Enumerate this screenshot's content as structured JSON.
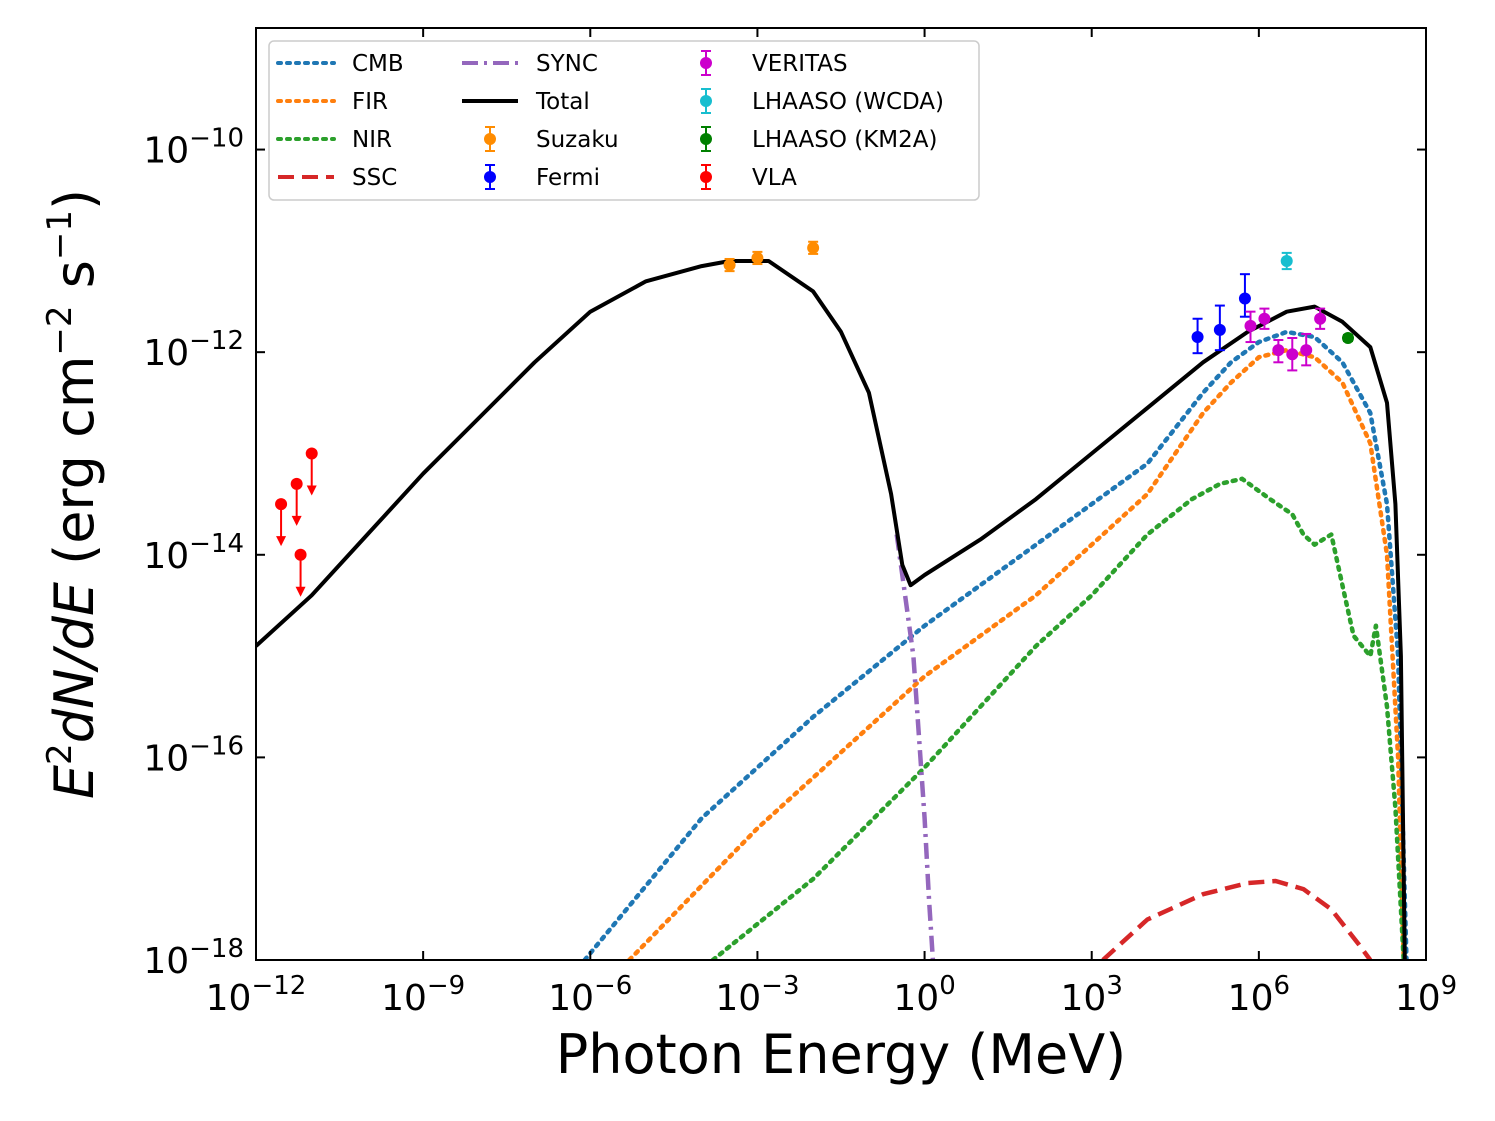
{
  "chart_data": {
    "type": "line",
    "title": "",
    "xlabel": "Photon Energy (MeV)",
    "ylabel_parts": {
      "E": "E",
      "sup2": "2",
      "dNdE": "dN/dE",
      "unit_open": "(erg cm",
      "sup_m2": "−2",
      "unit_s": " s",
      "sup_m1": "−1",
      "unit_close": ")"
    },
    "xscale": "log",
    "yscale": "log",
    "xlim_exp": [
      -12,
      9
    ],
    "ylim_exp": [
      -18,
      -8.8
    ],
    "x_ticks": [
      {
        "base": "10",
        "exp": "−12",
        "value": -12
      },
      {
        "base": "10",
        "exp": "−9",
        "value": -9
      },
      {
        "base": "10",
        "exp": "−6",
        "value": -6
      },
      {
        "base": "10",
        "exp": "−3",
        "value": -3
      },
      {
        "base": "10",
        "exp": "0",
        "value": 0
      },
      {
        "base": "10",
        "exp": "3",
        "value": 3
      },
      {
        "base": "10",
        "exp": "6",
        "value": 6
      },
      {
        "base": "10",
        "exp": "9",
        "value": 9
      }
    ],
    "y_ticks": [
      {
        "base": "10",
        "exp": "−18",
        "value": -18
      },
      {
        "base": "10",
        "exp": "−16",
        "value": -16
      },
      {
        "base": "10",
        "exp": "−14",
        "value": -14
      },
      {
        "base": "10",
        "exp": "−12",
        "value": -12
      },
      {
        "base": "10",
        "exp": "−10",
        "value": -10
      }
    ],
    "series": [
      {
        "name": "CMB",
        "color": "#1f77b4",
        "style": "dotted",
        "points": [
          [
            -6.1,
            -18
          ],
          [
            -4,
            -16.6
          ],
          [
            -2,
            -15.6
          ],
          [
            0,
            -14.7
          ],
          [
            1,
            -14.3
          ],
          [
            2,
            -13.9
          ],
          [
            3,
            -13.5
          ],
          [
            4,
            -13.1
          ],
          [
            5,
            -12.4
          ],
          [
            5.5,
            -12.1
          ],
          [
            6,
            -11.9
          ],
          [
            6.5,
            -11.8
          ],
          [
            7,
            -11.85
          ],
          [
            7.5,
            -12.1
          ],
          [
            8,
            -12.6
          ],
          [
            8.3,
            -13.5
          ],
          [
            8.5,
            -15
          ],
          [
            8.65,
            -18
          ]
        ]
      },
      {
        "name": "FIR",
        "color": "#ff7f0e",
        "style": "dotted",
        "points": [
          [
            -5.3,
            -18
          ],
          [
            -3,
            -16.7
          ],
          [
            -1,
            -15.7
          ],
          [
            0,
            -15.2
          ],
          [
            1,
            -14.8
          ],
          [
            2,
            -14.4
          ],
          [
            3,
            -13.9
          ],
          [
            4,
            -13.4
          ],
          [
            5,
            -12.6
          ],
          [
            5.5,
            -12.3
          ],
          [
            6,
            -12.05
          ],
          [
            6.5,
            -11.98
          ],
          [
            7,
            -12.05
          ],
          [
            7.5,
            -12.3
          ],
          [
            8,
            -12.9
          ],
          [
            8.3,
            -14
          ],
          [
            8.5,
            -16
          ],
          [
            8.6,
            -18
          ]
        ]
      },
      {
        "name": "NIR",
        "color": "#2ca02c",
        "style": "dotted",
        "points": [
          [
            -3.8,
            -18
          ],
          [
            -2,
            -17.2
          ],
          [
            0,
            -16.1
          ],
          [
            2,
            -14.9
          ],
          [
            3,
            -14.4
          ],
          [
            4,
            -13.8
          ],
          [
            4.8,
            -13.45
          ],
          [
            5.3,
            -13.3
          ],
          [
            5.7,
            -13.25
          ],
          [
            6.2,
            -13.45
          ],
          [
            6.6,
            -13.6
          ],
          [
            6.8,
            -13.8
          ],
          [
            7.0,
            -13.9
          ],
          [
            7.3,
            -13.8
          ],
          [
            7.5,
            -14.3
          ],
          [
            7.7,
            -14.8
          ],
          [
            8.0,
            -15.0
          ],
          [
            8.1,
            -14.7
          ],
          [
            8.3,
            -15.5
          ],
          [
            8.45,
            -16.5
          ],
          [
            8.6,
            -18
          ]
        ]
      },
      {
        "name": "SSC",
        "color": "#d62728",
        "style": "dashed",
        "points": [
          [
            3.2,
            -18
          ],
          [
            4,
            -17.6
          ],
          [
            5,
            -17.35
          ],
          [
            5.8,
            -17.24
          ],
          [
            6.3,
            -17.22
          ],
          [
            6.8,
            -17.3
          ],
          [
            7.3,
            -17.5
          ],
          [
            7.8,
            -17.85
          ],
          [
            8.0,
            -18
          ]
        ]
      },
      {
        "name": "SYNC",
        "color": "#9467bd",
        "style": "dashdot",
        "points": [
          [
            -0.5,
            -13.8
          ],
          [
            -0.35,
            -14.4
          ],
          [
            -0.2,
            -15
          ],
          [
            -0.1,
            -15.8
          ],
          [
            0,
            -16.6
          ],
          [
            0.08,
            -17.4
          ],
          [
            0.15,
            -18
          ]
        ]
      },
      {
        "name": "Total",
        "color": "#000000",
        "style": "solid",
        "points": [
          [
            -12,
            -14.9
          ],
          [
            -11,
            -14.4
          ],
          [
            -10,
            -13.8
          ],
          [
            -9,
            -13.2
          ],
          [
            -8,
            -12.65
          ],
          [
            -7,
            -12.1
          ],
          [
            -6,
            -11.6
          ],
          [
            -5,
            -11.3
          ],
          [
            -4,
            -11.15
          ],
          [
            -3.5,
            -11.1
          ],
          [
            -2.8,
            -11.1
          ],
          [
            -2,
            -11.4
          ],
          [
            -1.5,
            -11.8
          ],
          [
            -1,
            -12.4
          ],
          [
            -0.6,
            -13.4
          ],
          [
            -0.4,
            -14.1
          ],
          [
            -0.25,
            -14.3
          ],
          [
            0,
            -14.2
          ],
          [
            1,
            -13.85
          ],
          [
            2,
            -13.45
          ],
          [
            3,
            -13
          ],
          [
            4,
            -12.55
          ],
          [
            5,
            -12.1
          ],
          [
            5.8,
            -11.8
          ],
          [
            6.5,
            -11.6
          ],
          [
            7,
            -11.55
          ],
          [
            7.5,
            -11.7
          ],
          [
            8,
            -11.95
          ],
          [
            8.3,
            -12.5
          ],
          [
            8.45,
            -13.5
          ],
          [
            8.55,
            -15
          ],
          [
            8.62,
            -18
          ]
        ]
      }
    ],
    "data_points": [
      {
        "name": "Suzaku",
        "color": "#ff8c00",
        "points": [
          [
            -3.5,
            -11.14,
            0.06,
            0.06
          ],
          [
            -3.0,
            -11.07,
            0.06,
            0.06
          ],
          [
            -2.0,
            -10.97,
            0.06,
            0.06
          ]
        ]
      },
      {
        "name": "Fermi",
        "color": "#0000ff",
        "points": [
          [
            4.9,
            -11.85,
            0.16,
            0.18
          ],
          [
            5.3,
            -11.78,
            0.2,
            0.24
          ],
          [
            5.75,
            -11.47,
            0.18,
            0.24
          ]
        ]
      },
      {
        "name": "VERITAS",
        "color": "#cc00cc",
        "points": [
          [
            5.85,
            -11.74,
            0.16,
            0.14
          ],
          [
            6.1,
            -11.67,
            0.1,
            0.1
          ],
          [
            6.35,
            -11.98,
            0.12,
            0.1
          ],
          [
            6.6,
            -12.02,
            0.16,
            0.16
          ],
          [
            6.85,
            -11.98,
            0.15,
            0.16
          ],
          [
            7.1,
            -11.67,
            0.1,
            0.1
          ]
        ]
      },
      {
        "name": "LHAASO (WCDA)",
        "color": "#17becf",
        "points": [
          [
            6.5,
            -11.1,
            0.08,
            0.08
          ]
        ]
      },
      {
        "name": "LHAASO (KM2A)",
        "color": "#008000",
        "points": [
          [
            7.6,
            -11.86,
            0.03,
            0.03
          ]
        ]
      },
      {
        "name": "VLA",
        "color": "#ff0000",
        "upper_limits": true,
        "points": [
          [
            -11.55,
            -13.5
          ],
          [
            -11.27,
            -13.3
          ],
          [
            -11.2,
            -14
          ],
          [
            -11.0,
            -13.0
          ]
        ]
      }
    ],
    "legend": [
      {
        "label": "CMB",
        "kind": "line",
        "style": "dotted",
        "color": "#1f77b4"
      },
      {
        "label": "FIR",
        "kind": "line",
        "style": "dotted",
        "color": "#ff7f0e"
      },
      {
        "label": "NIR",
        "kind": "line",
        "style": "dotted",
        "color": "#2ca02c"
      },
      {
        "label": "SSC",
        "kind": "line",
        "style": "dashed",
        "color": "#d62728"
      },
      {
        "label": "SYNC",
        "kind": "line",
        "style": "dashdot",
        "color": "#9467bd"
      },
      {
        "label": "Total",
        "kind": "line",
        "style": "solid",
        "color": "#000000"
      },
      {
        "label": "Suzaku",
        "kind": "marker",
        "color": "#ff8c00"
      },
      {
        "label": "Fermi",
        "kind": "marker",
        "color": "#0000ff"
      },
      {
        "label": "VERITAS",
        "kind": "marker",
        "color": "#cc00cc"
      },
      {
        "label": "LHAASO (WCDA)",
        "kind": "marker",
        "color": "#17becf"
      },
      {
        "label": "LHAASO (KM2A)",
        "kind": "marker",
        "color": "#008000"
      },
      {
        "label": "VLA",
        "kind": "marker",
        "color": "#ff0000"
      }
    ],
    "legend_position": "top-left",
    "grid": false
  }
}
